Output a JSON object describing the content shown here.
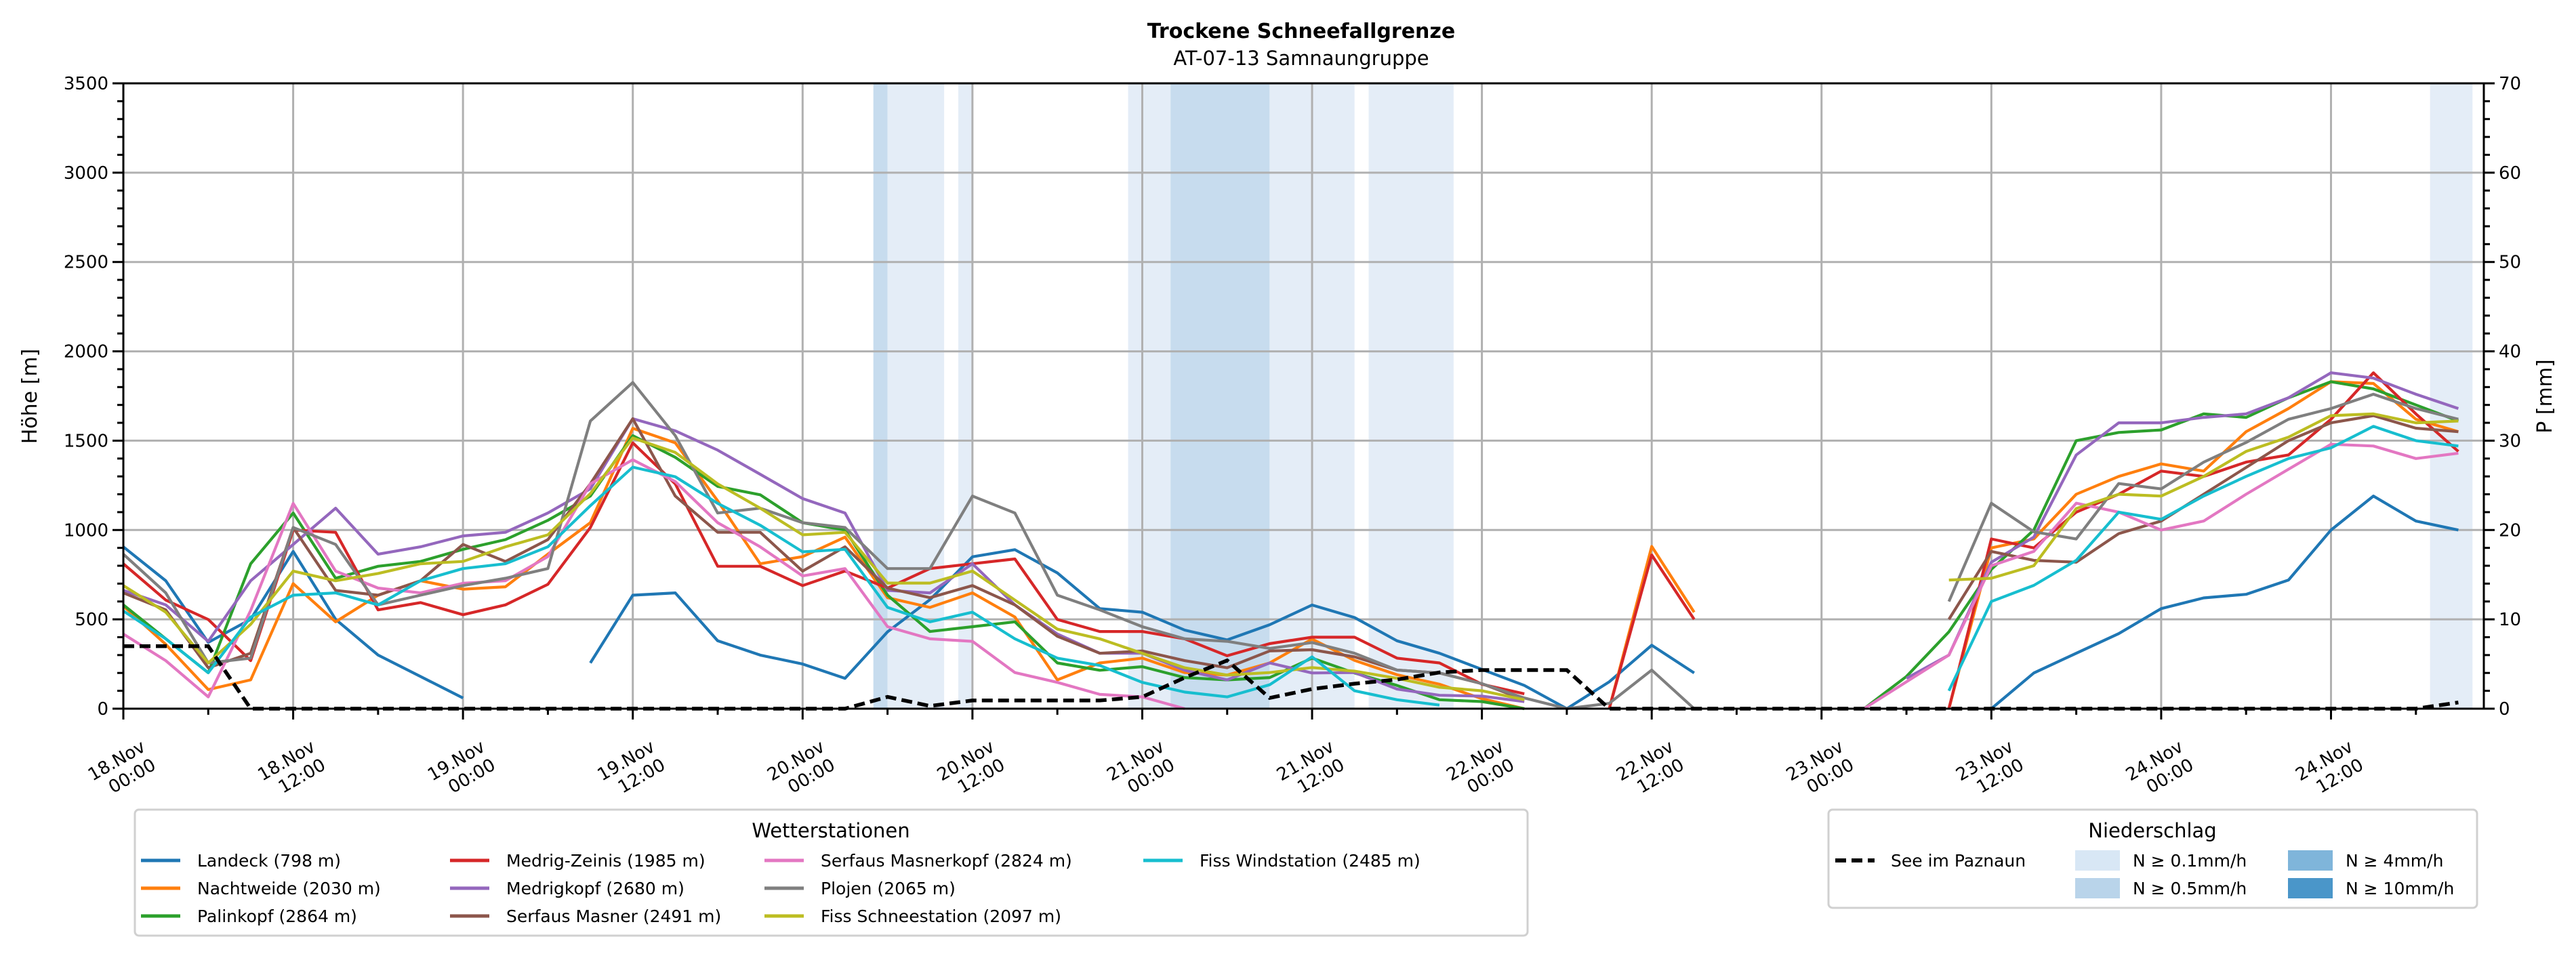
{
  "chart_data": {
    "type": "line",
    "title": "Trockene Schneefallgrenze",
    "subtitle": "AT-07-13 Samnaungruppe",
    "ylabel": "Höhe [m]",
    "ylabel_right": "P [mm]",
    "ylim": [
      0,
      3500
    ],
    "ylim_right": [
      0,
      70
    ],
    "y_ticks": [
      0,
      500,
      1000,
      1500,
      2000,
      2500,
      3000,
      3500
    ],
    "y_ticks_right": [
      0,
      10,
      20,
      30,
      40,
      50,
      60,
      70
    ],
    "x_unit": "hours since 18.Nov 00:00",
    "xlim": [
      0,
      166.8
    ],
    "x_step_hours": 3,
    "x_ticks": [
      {
        "h": 0,
        "date": "18.Nov",
        "time": "00:00"
      },
      {
        "h": 12,
        "date": "18.Nov",
        "time": "12:00"
      },
      {
        "h": 24,
        "date": "19.Nov",
        "time": "00:00"
      },
      {
        "h": 36,
        "date": "19.Nov",
        "time": "12:00"
      },
      {
        "h": 48,
        "date": "20.Nov",
        "time": "00:00"
      },
      {
        "h": 60,
        "date": "20.Nov",
        "time": "12:00"
      },
      {
        "h": 72,
        "date": "21.Nov",
        "time": "00:00"
      },
      {
        "h": 84,
        "date": "21.Nov",
        "time": "12:00"
      },
      {
        "h": 96,
        "date": "22.Nov",
        "time": "00:00"
      },
      {
        "h": 108,
        "date": "22.Nov",
        "time": "12:00"
      },
      {
        "h": 120,
        "date": "23.Nov",
        "time": "00:00"
      },
      {
        "h": 132,
        "date": "23.Nov",
        "time": "12:00"
      },
      {
        "h": 144,
        "date": "24.Nov",
        "time": "00:00"
      },
      {
        "h": 156,
        "date": "24.Nov",
        "time": "12:00"
      }
    ],
    "grid": true,
    "legend_stations": {
      "title": "Wetterstationen",
      "placement": "bottom-left"
    },
    "legend_precip": {
      "title": "Niederschlag",
      "placement": "bottom-right",
      "classes": [
        {
          "label": "N ≥ 0.1mm/h",
          "color": "#d8e7f5",
          "band_color": "#e4edf7"
        },
        {
          "label": "N ≥ 0.5mm/h",
          "color": "#b9d4ea",
          "band_color": "#c7dcee"
        },
        {
          "label": "N ≥ 4mm/h",
          "color": "#7fb5da",
          "band_color": "#a3c8e4"
        },
        {
          "label": "N ≥ 10mm/h",
          "color": "#4a96c9",
          "band_color": "#6aa8d3"
        }
      ]
    },
    "precip_bands": [
      {
        "start": 53,
        "end": 54,
        "class": 1
      },
      {
        "start": 54,
        "end": 58,
        "class": 0
      },
      {
        "start": 59,
        "end": 60,
        "class": 0
      },
      {
        "start": 71,
        "end": 74,
        "class": 0
      },
      {
        "start": 74,
        "end": 81,
        "class": 1
      },
      {
        "start": 81,
        "end": 87,
        "class": 0
      },
      {
        "start": 88,
        "end": 94,
        "class": 0
      },
      {
        "start": 163,
        "end": 166,
        "class": 0
      }
    ],
    "reference_line": {
      "name": "See im Paznaun",
      "color": "#000000",
      "values": [
        350,
        350,
        350,
        0,
        0,
        0,
        0,
        0,
        0,
        0,
        0,
        0,
        0,
        0,
        0,
        0,
        0,
        0,
        66,
        15,
        46,
        46,
        46,
        46,
        66,
        174,
        270,
        60,
        110,
        140,
        163,
        203,
        216,
        216,
        216,
        0,
        0,
        0,
        0,
        0,
        0,
        0,
        0,
        0,
        0,
        0,
        0,
        0,
        0,
        0,
        0,
        0,
        0,
        0,
        0,
        35
      ]
    },
    "series": [
      {
        "name": "Landeck (798 m)",
        "color": "#1f77b4",
        "values": [
          906,
          716,
          371,
          500,
          880,
          500,
          300,
          180,
          60,
          null,
          null,
          256,
          635,
          648,
          380,
          300,
          250,
          170,
          430,
          610,
          850,
          890,
          760,
          560,
          540,
          440,
          385,
          470,
          580,
          510,
          380,
          310,
          220,
          130,
          0,
          150,
          355,
          200,
          null,
          null,
          null,
          null,
          null,
          null,
          0,
          200,
          310,
          420,
          560,
          620,
          640,
          720,
          1000,
          1190,
          1050,
          1000
        ]
      },
      {
        "name": "Nachtweide (2030 m)",
        "color": "#ff7f0e",
        "values": [
          574,
          360,
          107,
          161,
          700,
          486,
          635,
          716,
          669,
          682,
          865,
          1041,
          1569,
          1488,
          1163,
          811,
          851,
          960,
          621,
          567,
          648,
          513,
          161,
          256,
          283,
          202,
          188,
          256,
          390,
          270,
          190,
          137,
          56,
          0,
          null,
          0,
          908,
          540,
          null,
          null,
          null,
          null,
          null,
          0,
          900,
          950,
          1200,
          1300,
          1370,
          1330,
          1550,
          1680,
          1830,
          1820,
          1620,
          1550
        ]
      },
      {
        "name": "Palinkopf (2864 m)",
        "color": "#2ca02c",
        "values": [
          581,
          391,
          201,
          811,
          1095,
          730,
          797,
          824,
          892,
          946,
          1054,
          1190,
          1528,
          1407,
          1244,
          1197,
          1041,
          1000,
          635,
          432,
          459,
          486,
          256,
          215,
          235,
          174,
          161,
          174,
          283,
          200,
          130,
          50,
          40,
          0,
          null,
          null,
          null,
          null,
          null,
          null,
          null,
          0,
          180,
          430,
          780,
          1000,
          1500,
          1546,
          1560,
          1650,
          1630,
          1740,
          1830,
          1790,
          1700,
          1610
        ]
      },
      {
        "name": "Medrig-Zeinis (1985 m)",
        "color": "#d62728",
        "values": [
          811,
          608,
          499,
          269,
          1000,
          987,
          553,
          594,
          526,
          581,
          696,
          1014,
          1488,
          1258,
          797,
          797,
          689,
          770,
          675,
          784,
          811,
          838,
          499,
          432,
          432,
          391,
          296,
          364,
          400,
          400,
          283,
          256,
          137,
          83,
          null,
          0,
          860,
          500,
          null,
          null,
          null,
          null,
          null,
          0,
          950,
          900,
          1100,
          1200,
          1330,
          1300,
          1380,
          1420,
          1620,
          1880,
          1650,
          1440
        ]
      },
      {
        "name": "Medrigkopf (2680 m)",
        "color": "#9467bd",
        "values": [
          662,
          581,
          377,
          716,
          919,
          1122,
          865,
          906,
          967,
          987,
          1095,
          1231,
          1623,
          1555,
          1447,
          1312,
          1176,
          1095,
          662,
          648,
          811,
          581,
          418,
          310,
          310,
          215,
          161,
          256,
          200,
          202,
          110,
          75,
          70,
          40,
          null,
          null,
          null,
          null,
          null,
          null,
          null,
          null,
          170,
          300,
          820,
          960,
          1420,
          1600,
          1600,
          1630,
          1650,
          1740,
          1880,
          1850,
          1760,
          1680
        ]
      },
      {
        "name": "Serfaus Masner (2491 m)",
        "color": "#8c564b",
        "values": [
          648,
          553,
          229,
          310,
          1014,
          662,
          635,
          716,
          919,
          824,
          946,
          1258,
          1623,
          1190,
          987,
          987,
          770,
          906,
          675,
          621,
          689,
          581,
          405,
          310,
          323,
          269,
          229,
          323,
          330,
          290,
          216,
          200,
          140,
          50,
          null,
          null,
          null,
          null,
          null,
          null,
          null,
          null,
          null,
          500,
          880,
          830,
          820,
          980,
          1050,
          1200,
          1350,
          1500,
          1600,
          1640,
          1570,
          1550
        ]
      },
      {
        "name": "Serfaus Masnerkopf (2824 m)",
        "color": "#e377c2",
        "values": [
          418,
          269,
          66,
          550,
          1149,
          770,
          675,
          648,
          702,
          716,
          851,
          1258,
          1393,
          1271,
          1041,
          906,
          743,
          784,
          459,
          391,
          377,
          202,
          147,
          80,
          66,
          0,
          null,
          null,
          null,
          null,
          null,
          null,
          null,
          null,
          null,
          null,
          null,
          null,
          null,
          null,
          null,
          0,
          150,
          300,
          800,
          880,
          1150,
          1100,
          1000,
          1050,
          1200,
          1340,
          1480,
          1470,
          1400,
          1430
        ]
      },
      {
        "name": "Plojen (2065 m)",
        "color": "#7f7f7f",
        "values": [
          865,
          648,
          256,
          283,
          1014,
          919,
          581,
          635,
          689,
          730,
          784,
          1610,
          1826,
          1528,
          1095,
          1122,
          1041,
          1014,
          784,
          784,
          1190,
          1095,
          635,
          553,
          459,
          391,
          377,
          337,
          370,
          310,
          216,
          200,
          140,
          60,
          0,
          30,
          216,
          0,
          null,
          null,
          null,
          null,
          null,
          600,
          1150,
          990,
          950,
          1260,
          1230,
          1380,
          1490,
          1620,
          1680,
          1760,
          1680,
          1620
        ]
      },
      {
        "name": "Fiss Schneestation (2097 m)",
        "color": "#bcbd22",
        "values": [
          689,
          540,
          256,
          472,
          770,
          716,
          757,
          811,
          824,
          906,
          973,
          1204,
          1515,
          1434,
          1258,
          1122,
          973,
          987,
          703,
          703,
          770,
          608,
          445,
          391,
          310,
          229,
          188,
          202,
          230,
          210,
          170,
          120,
          100,
          50,
          null,
          null,
          null,
          null,
          null,
          null,
          null,
          null,
          null,
          720,
          730,
          800,
          1120,
          1200,
          1190,
          1300,
          1440,
          1520,
          1640,
          1650,
          1600,
          1610
        ]
      },
      {
        "name": "Fiss Windstation (2485 m)",
        "color": "#17becf",
        "values": [
          547,
          391,
          201,
          513,
          635,
          648,
          581,
          716,
          784,
          811,
          906,
          1136,
          1352,
          1298,
          1149,
          1027,
          878,
          892,
          567,
          486,
          540,
          391,
          283,
          242,
          147,
          93,
          66,
          134,
          290,
          100,
          50,
          20,
          null,
          null,
          null,
          null,
          null,
          null,
          null,
          null,
          null,
          null,
          null,
          100,
          600,
          690,
          830,
          1100,
          1060,
          1190,
          1300,
          1400,
          1460,
          1580,
          1500,
          1470
        ]
      }
    ]
  }
}
